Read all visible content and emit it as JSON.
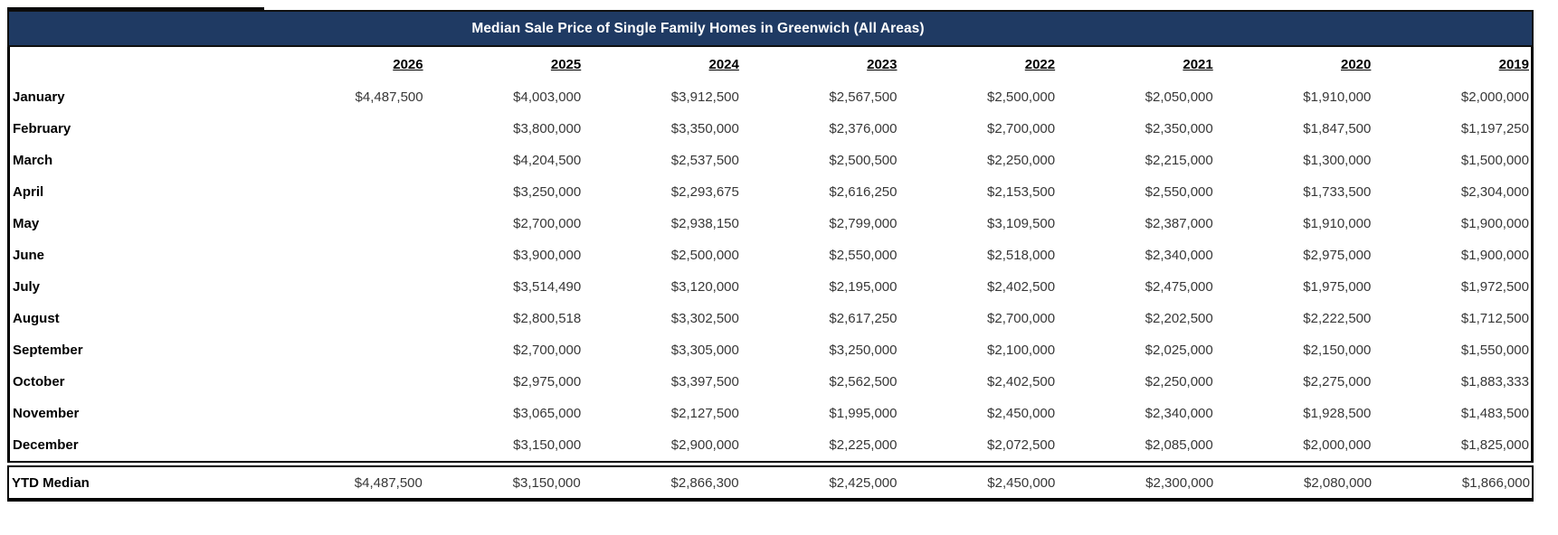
{
  "title": "Median Sale Price of Single Family Homes in Greenwich (All Areas)",
  "colors": {
    "header_bg": "#1f3a63",
    "header_text": "#ffffff",
    "border": "#000000",
    "value_text": "#373737",
    "label_text": "#000000"
  },
  "chart_data": {
    "type": "table",
    "title": "Median Sale Price of Single Family Homes in Greenwich (All Areas)",
    "columns": [
      "2026",
      "2025",
      "2024",
      "2023",
      "2022",
      "2021",
      "2020",
      "2019"
    ],
    "rows": [
      {
        "label": "January",
        "values": [
          "$4,487,500",
          "$4,003,000",
          "$3,912,500",
          "$2,567,500",
          "$2,500,000",
          "$2,050,000",
          "$1,910,000",
          "$2,000,000"
        ]
      },
      {
        "label": "February",
        "values": [
          "",
          "$3,800,000",
          "$3,350,000",
          "$2,376,000",
          "$2,700,000",
          "$2,350,000",
          "$1,847,500",
          "$1,197,250"
        ]
      },
      {
        "label": "March",
        "values": [
          "",
          "$4,204,500",
          "$2,537,500",
          "$2,500,500",
          "$2,250,000",
          "$2,215,000",
          "$1,300,000",
          "$1,500,000"
        ]
      },
      {
        "label": "April",
        "values": [
          "",
          "$3,250,000",
          "$2,293,675",
          "$2,616,250",
          "$2,153,500",
          "$2,550,000",
          "$1,733,500",
          "$2,304,000"
        ]
      },
      {
        "label": "May",
        "values": [
          "",
          "$2,700,000",
          "$2,938,150",
          "$2,799,000",
          "$3,109,500",
          "$2,387,000",
          "$1,910,000",
          "$1,900,000"
        ]
      },
      {
        "label": "June",
        "values": [
          "",
          "$3,900,000",
          "$2,500,000",
          "$2,550,000",
          "$2,518,000",
          "$2,340,000",
          "$2,975,000",
          "$1,900,000"
        ]
      },
      {
        "label": "July",
        "values": [
          "",
          "$3,514,490",
          "$3,120,000",
          "$2,195,000",
          "$2,402,500",
          "$2,475,000",
          "$1,975,000",
          "$1,972,500"
        ]
      },
      {
        "label": "August",
        "values": [
          "",
          "$2,800,518",
          "$3,302,500",
          "$2,617,250",
          "$2,700,000",
          "$2,202,500",
          "$2,222,500",
          "$1,712,500"
        ]
      },
      {
        "label": "September",
        "values": [
          "",
          "$2,700,000",
          "$3,305,000",
          "$3,250,000",
          "$2,100,000",
          "$2,025,000",
          "$2,150,000",
          "$1,550,000"
        ]
      },
      {
        "label": "October",
        "values": [
          "",
          "$2,975,000",
          "$3,397,500",
          "$2,562,500",
          "$2,402,500",
          "$2,250,000",
          "$2,275,000",
          "$1,883,333"
        ]
      },
      {
        "label": "November",
        "values": [
          "",
          "$3,065,000",
          "$2,127,500",
          "$1,995,000",
          "$2,450,000",
          "$2,340,000",
          "$1,928,500",
          "$1,483,500"
        ]
      },
      {
        "label": "December",
        "values": [
          "",
          "$3,150,000",
          "$2,900,000",
          "$2,225,000",
          "$2,072,500",
          "$2,085,000",
          "$2,000,000",
          "$1,825,000"
        ]
      }
    ],
    "ytd": {
      "label": "YTD Median",
      "values": [
        "$4,487,500",
        "$3,150,000",
        "$2,866,300",
        "$2,425,000",
        "$2,450,000",
        "$2,300,000",
        "$2,080,000",
        "$1,866,000"
      ]
    }
  }
}
